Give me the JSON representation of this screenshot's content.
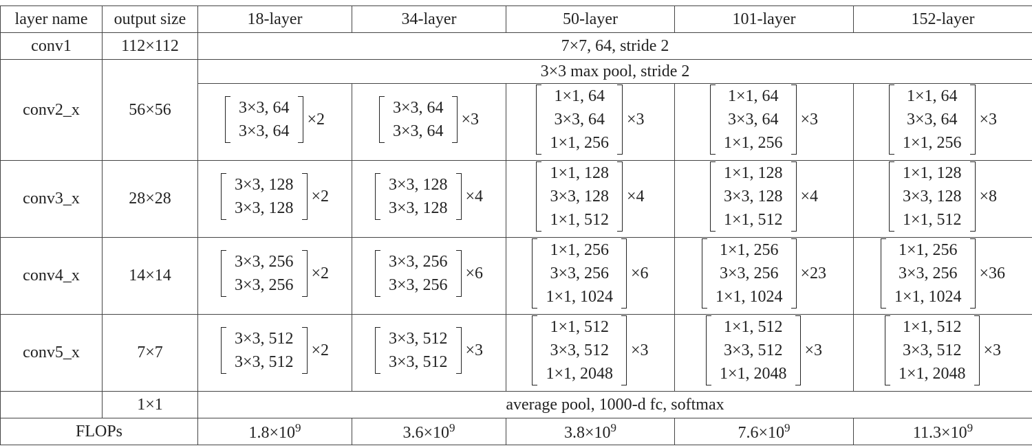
{
  "table": {
    "header": [
      "layer name",
      "output size",
      "18-layer",
      "34-layer",
      "50-layer",
      "101-layer",
      "152-layer"
    ],
    "rows": [
      {
        "name": "conv1",
        "size": "112×112",
        "span": "7×7, 64, stride 2"
      },
      {
        "name": "conv2_x",
        "size": "56×56",
        "span": "3×3 max pool, stride 2",
        "blocks": [
          {
            "lines": [
              "3×3, 64",
              "3×3, 64"
            ],
            "repeat": "×2"
          },
          {
            "lines": [
              "3×3, 64",
              "3×3, 64"
            ],
            "repeat": "×3"
          },
          {
            "lines": [
              "1×1, 64",
              "3×3, 64",
              "1×1, 256"
            ],
            "repeat": "×3"
          },
          {
            "lines": [
              "1×1, 64",
              "3×3, 64",
              "1×1, 256"
            ],
            "repeat": "×3"
          },
          {
            "lines": [
              "1×1, 64",
              "3×3, 64",
              "1×1, 256"
            ],
            "repeat": "×3"
          }
        ]
      },
      {
        "name": "conv3_x",
        "size": "28×28",
        "blocks": [
          {
            "lines": [
              "3×3, 128",
              "3×3, 128"
            ],
            "repeat": "×2"
          },
          {
            "lines": [
              "3×3, 128",
              "3×3, 128"
            ],
            "repeat": "×4"
          },
          {
            "lines": [
              "1×1, 128",
              "3×3, 128",
              "1×1, 512"
            ],
            "repeat": "×4"
          },
          {
            "lines": [
              "1×1, 128",
              "3×3, 128",
              "1×1, 512"
            ],
            "repeat": "×4"
          },
          {
            "lines": [
              "1×1, 128",
              "3×3, 128",
              "1×1, 512"
            ],
            "repeat": "×8"
          }
        ]
      },
      {
        "name": "conv4_x",
        "size": "14×14",
        "blocks": [
          {
            "lines": [
              "3×3, 256",
              "3×3, 256"
            ],
            "repeat": "×2"
          },
          {
            "lines": [
              "3×3, 256",
              "3×3, 256"
            ],
            "repeat": "×6"
          },
          {
            "lines": [
              "1×1, 256",
              "3×3, 256",
              "1×1, 1024"
            ],
            "repeat": "×6"
          },
          {
            "lines": [
              "1×1, 256",
              "3×3, 256",
              "1×1, 1024"
            ],
            "repeat": "×23"
          },
          {
            "lines": [
              "1×1, 256",
              "3×3, 256",
              "1×1, 1024"
            ],
            "repeat": "×36"
          }
        ]
      },
      {
        "name": "conv5_x",
        "size": "7×7",
        "blocks": [
          {
            "lines": [
              "3×3, 512",
              "3×3, 512"
            ],
            "repeat": "×2"
          },
          {
            "lines": [
              "3×3, 512",
              "3×3, 512"
            ],
            "repeat": "×3"
          },
          {
            "lines": [
              "1×1, 512",
              "3×3, 512",
              "1×1, 2048"
            ],
            "repeat": "×3"
          },
          {
            "lines": [
              "1×1, 512",
              "3×3, 512",
              "1×1, 2048"
            ],
            "repeat": "×3"
          },
          {
            "lines": [
              "1×1, 512",
              "3×3, 512",
              "1×1, 2048"
            ],
            "repeat": "×3"
          }
        ]
      },
      {
        "size": "1×1",
        "span": "average pool, 1000-d fc, softmax"
      }
    ],
    "flops": {
      "label": "FLOPs",
      "values": [
        {
          "mantissa": "1.8×10",
          "exponent": "9"
        },
        {
          "mantissa": "3.6×10",
          "exponent": "9"
        },
        {
          "mantissa": "3.8×10",
          "exponent": "9"
        },
        {
          "mantissa": "7.6×10",
          "exponent": "9"
        },
        {
          "mantissa": "11.3×10",
          "exponent": "9"
        }
      ]
    }
  }
}
